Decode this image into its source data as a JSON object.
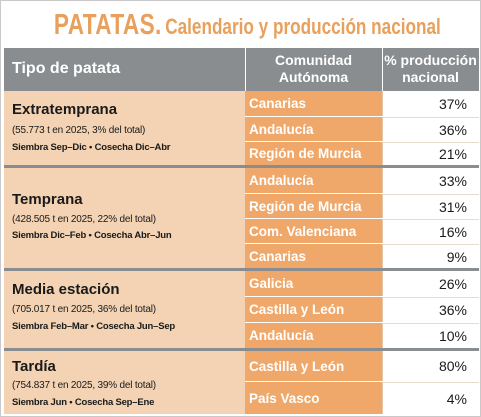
{
  "title": {
    "main": "PATATAS.",
    "sub": "Calendario y producción nacional"
  },
  "header": {
    "type": "Tipo de patata",
    "community_line1": "Comunidad",
    "community_line2": "Autónoma",
    "pct_line1": "% producción",
    "pct_line2": "nacional"
  },
  "colors": {
    "title": "#e8a05c",
    "header_bg": "#8a8d8f",
    "left_bg": "#f3d3b3",
    "community_bg": "#f0a86a"
  },
  "groups": [
    {
      "name": "Extratemprana",
      "production": "(55.773 t en 2025, 3% del total)",
      "schedule": "Siembra Sep–Dic • Cosecha Dic–Abr",
      "rows": [
        {
          "community": "Canarias",
          "pct": "37%"
        },
        {
          "community": "Andalucía",
          "pct": "36%"
        },
        {
          "community": "Región de Murcia",
          "pct": "21%"
        }
      ]
    },
    {
      "name": "Temprana",
      "production": "(428.505 t en 2025, 22% del total)",
      "schedule": "Siembra Dic–Feb • Cosecha Abr–Jun",
      "rows": [
        {
          "community": "Andalucía",
          "pct": "33%"
        },
        {
          "community": "Región de Murcia",
          "pct": "31%"
        },
        {
          "community": "Com. Valenciana",
          "pct": "16%"
        },
        {
          "community": "Canarias",
          "pct": "9%"
        }
      ]
    },
    {
      "name": "Media estación",
      "production": "(705.017 t en 2025, 36% del total)",
      "schedule": "Siembra Feb–Mar • Cosecha Jun–Sep",
      "rows": [
        {
          "community": "Galicia",
          "pct": "26%"
        },
        {
          "community": "Castilla y León",
          "pct": "36%"
        },
        {
          "community": "Andalucía",
          "pct": "10%"
        }
      ]
    },
    {
      "name": "Tardía",
      "production": "(754.837 t en 2025, 39% del total)",
      "schedule": "Siembra Jun • Cosecha Sep–Ene",
      "rows": [
        {
          "community": "Castilla y León",
          "pct": "80%"
        },
        {
          "community": "País Vasco",
          "pct": "4%"
        }
      ]
    }
  ]
}
